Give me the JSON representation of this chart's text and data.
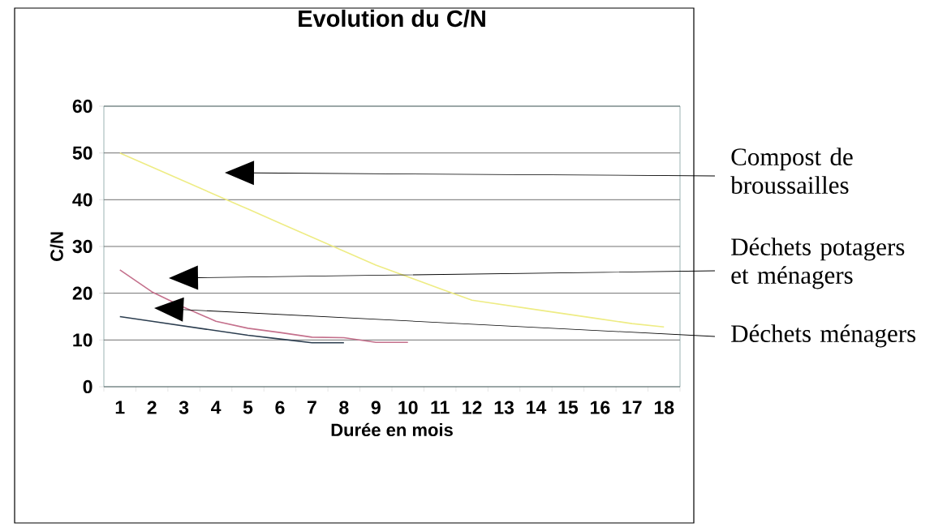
{
  "chart_data": {
    "type": "line",
    "title": "Evolution du C/N",
    "xlabel": "Durée en mois",
    "ylabel": "C/N",
    "categories": [
      "1",
      "2",
      "3",
      "4",
      "5",
      "6",
      "7",
      "8",
      "9",
      "10",
      "11",
      "12",
      "13",
      "14",
      "15",
      "16",
      "17",
      "18"
    ],
    "series": [
      {
        "name": "Compost de broussailles",
        "color": "#eeec84",
        "values": [
          50,
          47,
          44,
          41,
          38,
          35,
          32,
          29,
          26,
          23.5,
          21,
          18.5,
          17.5,
          16.5,
          15.5,
          14.5,
          13.5,
          12.8
        ]
      },
      {
        "name": "Déchets potagers et ménagers",
        "color": "#c4708c",
        "values": [
          25,
          20.3,
          17,
          14,
          12.5,
          11.6,
          10.6,
          10.5,
          9.5,
          9.5,
          null,
          null,
          null,
          null,
          null,
          null,
          null,
          null
        ]
      },
      {
        "name": "Déchets ménagers",
        "color": "#2c3e50",
        "values": [
          15,
          14,
          13,
          12,
          11,
          10.2,
          9.4,
          9.4,
          null,
          null,
          null,
          null,
          null,
          null,
          null,
          null,
          null,
          null
        ]
      }
    ],
    "ylim": [
      0,
      60
    ],
    "yticks": [
      0,
      10,
      20,
      30,
      40,
      50,
      60
    ],
    "grid": "y",
    "marker": "none",
    "line_style": "solid"
  }
}
